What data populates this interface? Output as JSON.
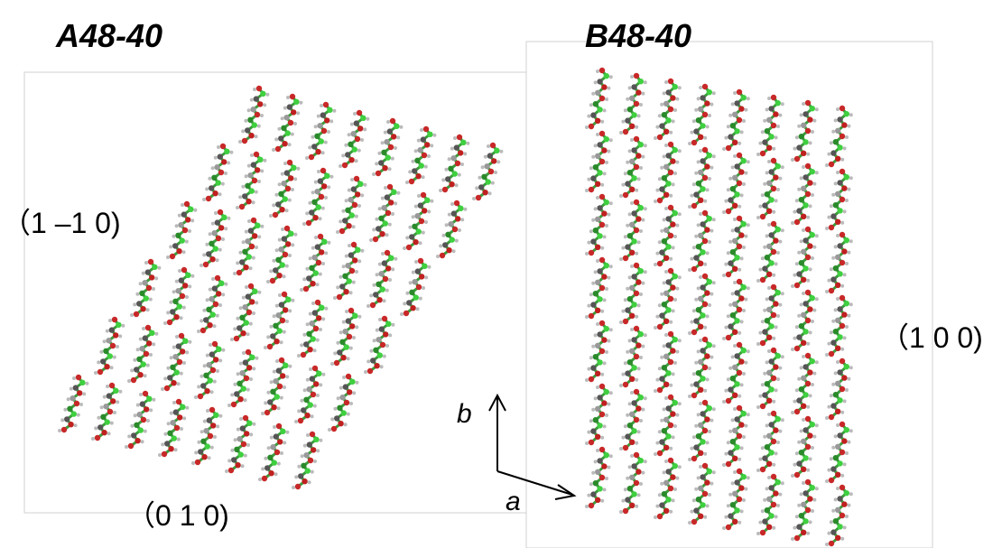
{
  "panels": [
    {
      "title": "A48-40",
      "side_label": "（1 –1 0)",
      "bottom_label": "（0 1 0)"
    },
    {
      "title": "B48-40",
      "side_label": "（1 0 0)"
    }
  ],
  "axes": {
    "b": "b",
    "a": "a"
  }
}
